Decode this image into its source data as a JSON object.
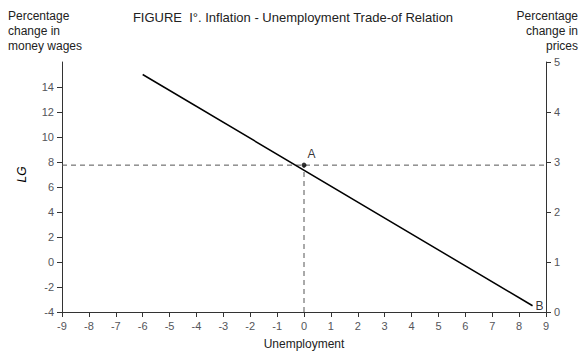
{
  "chart_data": {
    "type": "line",
    "title": "FIGURE  I°. Inflation - Unemployment Trade-of Relation",
    "xlabel": "Unemployment",
    "ylabel": [
      "Percentage",
      "change in",
      "money wages"
    ],
    "y2label": [
      "Percentage",
      "change in",
      "prices"
    ],
    "x": [
      -6.0,
      8.5
    ],
    "values": [
      15.0,
      -3.5
    ],
    "color": "#000000",
    "xlim": [
      -9,
      9
    ],
    "xticks": [
      -9,
      -8,
      -7,
      -6,
      -5,
      -4,
      -3,
      -2,
      -1,
      0,
      1,
      2,
      3,
      4,
      5,
      6,
      7,
      8,
      9
    ],
    "ylim": [
      -4,
      16
    ],
    "yticks": [
      -4,
      -2,
      0,
      2,
      4,
      6,
      8,
      10,
      12,
      14
    ],
    "y2lim": [
      0,
      5
    ],
    "y2ticks": [
      0,
      1,
      2,
      3,
      4,
      5
    ],
    "grid": false,
    "reference_lines": [
      {
        "y": 7.75,
        "color": "#555555",
        "line_style": "dashed"
      },
      {
        "x": 0.0,
        "y": [
          -4,
          7.75
        ],
        "color": "#555555",
        "line_style": "dashed"
      }
    ],
    "annotations": [
      {
        "text": "A",
        "x": 0.0,
        "y": 7.75,
        "marker": "circle"
      },
      {
        "text": "B",
        "x": 8.5,
        "y": -3.5
      },
      {
        "text": "LG",
        "y": 7.0
      }
    ]
  }
}
